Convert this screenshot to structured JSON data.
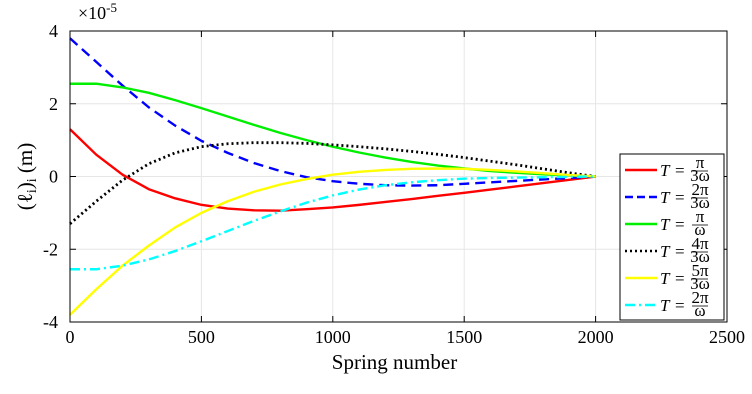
{
  "chart_data": {
    "type": "line",
    "title": "",
    "xlabel": "Spring number",
    "ylabel": "(ℓᵢ)ᵢ (m)",
    "ylabel_parts": [
      "(ℓ",
      "i",
      ")",
      "i",
      " (m)"
    ],
    "y_exponent_label": "×10",
    "y_exponent_power": "-5",
    "xlim": [
      0,
      2500
    ],
    "ylim": [
      -4,
      4
    ],
    "xticks": [
      0,
      500,
      1000,
      1500,
      2000,
      2500
    ],
    "yticks": [
      -4,
      -2,
      0,
      2,
      4
    ],
    "xtick_labels": [
      "0",
      "500",
      "1000",
      "1500",
      "2000",
      "2500"
    ],
    "ytick_labels": [
      "-4",
      "-2",
      "0",
      "2",
      "4"
    ],
    "grid": true,
    "legend_position": "right",
    "x": [
      0,
      100,
      200,
      300,
      400,
      500,
      600,
      700,
      800,
      900,
      1000,
      1100,
      1200,
      1300,
      1400,
      1500,
      1600,
      1700,
      1800,
      1900,
      2000
    ],
    "series": [
      {
        "name": "T = π/(3ω)",
        "legend_num": "π",
        "legend_den": "3ω",
        "color": "#ff0000",
        "dash": "solid",
        "values": [
          1.3,
          0.6,
          0.05,
          -0.35,
          -0.6,
          -0.78,
          -0.88,
          -0.93,
          -0.94,
          -0.9,
          -0.85,
          -0.78,
          -0.7,
          -0.62,
          -0.53,
          -0.45,
          -0.36,
          -0.27,
          -0.18,
          -0.09,
          0.0
        ]
      },
      {
        "name": "T = 2π/(3ω)",
        "legend_num": "2π",
        "legend_den": "3ω",
        "color": "#0000ff",
        "dash": "dashed",
        "values": [
          3.8,
          3.15,
          2.5,
          1.9,
          1.4,
          0.98,
          0.65,
          0.37,
          0.15,
          -0.02,
          -0.13,
          -0.2,
          -0.24,
          -0.25,
          -0.24,
          -0.2,
          -0.16,
          -0.12,
          -0.08,
          -0.04,
          0.0
        ]
      },
      {
        "name": "T = π/ω",
        "legend_num": "π",
        "legend_den": "ω",
        "color": "#00ee00",
        "dash": "solid",
        "values": [
          2.55,
          2.55,
          2.45,
          2.3,
          2.1,
          1.88,
          1.65,
          1.42,
          1.2,
          1.0,
          0.82,
          0.66,
          0.52,
          0.4,
          0.3,
          0.22,
          0.15,
          0.1,
          0.06,
          0.03,
          0.0
        ]
      },
      {
        "name": "T = 4π/(3ω)",
        "legend_num": "4π",
        "legend_den": "3ω",
        "color": "#000000",
        "dash": "dotted",
        "values": [
          -1.3,
          -0.68,
          -0.1,
          0.35,
          0.65,
          0.82,
          0.9,
          0.93,
          0.93,
          0.91,
          0.87,
          0.82,
          0.76,
          0.69,
          0.61,
          0.52,
          0.42,
          0.32,
          0.21,
          0.1,
          0.0
        ]
      },
      {
        "name": "T = 5π/(3ω)",
        "legend_num": "5π",
        "legend_den": "3ω",
        "color": "#ffff00",
        "dash": "solid",
        "values": [
          -3.8,
          -3.1,
          -2.45,
          -1.9,
          -1.4,
          -1.0,
          -0.68,
          -0.42,
          -0.22,
          -0.07,
          0.05,
          0.13,
          0.18,
          0.21,
          0.22,
          0.21,
          0.18,
          0.14,
          0.09,
          0.04,
          0.0
        ]
      },
      {
        "name": "T = 2π/ω",
        "legend_num": "2π",
        "legend_den": "ω",
        "color": "#00ffff",
        "dash": "dashdot",
        "values": [
          -2.55,
          -2.55,
          -2.45,
          -2.28,
          -2.05,
          -1.78,
          -1.5,
          -1.22,
          -0.96,
          -0.72,
          -0.52,
          -0.36,
          -0.24,
          -0.16,
          -0.1,
          -0.06,
          -0.04,
          -0.03,
          -0.02,
          -0.01,
          0.0
        ]
      }
    ]
  }
}
